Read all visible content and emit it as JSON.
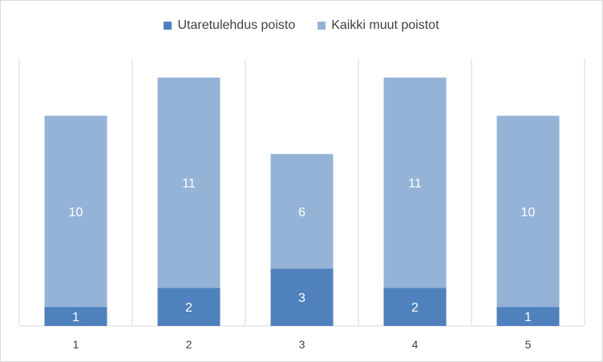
{
  "chart_data": {
    "type": "bar",
    "stacked": true,
    "categories": [
      "1",
      "2",
      "3",
      "4",
      "5"
    ],
    "series": [
      {
        "name": "Utaretulehdus poisto",
        "values": [
          1,
          2,
          3,
          2,
          1
        ],
        "color": "#4f81bd",
        "label_color": "#ffffff"
      },
      {
        "name": "Kaikki muut poistot",
        "values": [
          10,
          11,
          6,
          11,
          10
        ],
        "color": "#95b3d7",
        "label_color": "#ffffff"
      }
    ],
    "ylim": [
      0,
      14
    ],
    "grid": "vertical",
    "legend": "top",
    "title": "",
    "xlabel": "",
    "ylabel": ""
  }
}
